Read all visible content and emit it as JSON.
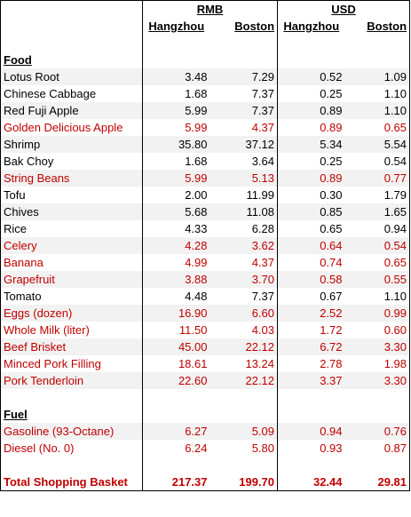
{
  "header": {
    "currency_rmb": "RMB",
    "currency_usd": "USD",
    "cities": [
      "Hangzhou",
      "Boston",
      "Hangzhou",
      "Boston"
    ]
  },
  "sections": {
    "food": "Food",
    "fuel": "Fuel"
  },
  "food_items": [
    {
      "name": "Lotus Root",
      "rmb_hz": "3.48",
      "rmb_bos": "7.29",
      "usd_hz": "0.52",
      "usd_bos": "1.09",
      "highlight": false
    },
    {
      "name": "Chinese Cabbage",
      "rmb_hz": "1.68",
      "rmb_bos": "7.37",
      "usd_hz": "0.25",
      "usd_bos": "1.10",
      "highlight": false
    },
    {
      "name": "Red Fuji Apple",
      "rmb_hz": "5.99",
      "rmb_bos": "7.37",
      "usd_hz": "0.89",
      "usd_bos": "1.10",
      "highlight": false
    },
    {
      "name": "Golden Delicious Apple",
      "rmb_hz": "5.99",
      "rmb_bos": "4.37",
      "usd_hz": "0.89",
      "usd_bos": "0.65",
      "highlight": true
    },
    {
      "name": "Shrimp",
      "rmb_hz": "35.80",
      "rmb_bos": "37.12",
      "usd_hz": "5.34",
      "usd_bos": "5.54",
      "highlight": false
    },
    {
      "name": "Bak Choy",
      "rmb_hz": "1.68",
      "rmb_bos": "3.64",
      "usd_hz": "0.25",
      "usd_bos": "0.54",
      "highlight": false
    },
    {
      "name": "String Beans",
      "rmb_hz": "5.99",
      "rmb_bos": "5.13",
      "usd_hz": "0.89",
      "usd_bos": "0.77",
      "highlight": true
    },
    {
      "name": "Tofu",
      "rmb_hz": "2.00",
      "rmb_bos": "11.99",
      "usd_hz": "0.30",
      "usd_bos": "1.79",
      "highlight": false
    },
    {
      "name": "Chives",
      "rmb_hz": "5.68",
      "rmb_bos": "11.08",
      "usd_hz": "0.85",
      "usd_bos": "1.65",
      "highlight": false
    },
    {
      "name": "Rice",
      "rmb_hz": "4.33",
      "rmb_bos": "6.28",
      "usd_hz": "0.65",
      "usd_bos": "0.94",
      "highlight": false
    },
    {
      "name": "Celery",
      "rmb_hz": "4.28",
      "rmb_bos": "3.62",
      "usd_hz": "0.64",
      "usd_bos": "0.54",
      "highlight": true
    },
    {
      "name": "Banana",
      "rmb_hz": "4.99",
      "rmb_bos": "4.37",
      "usd_hz": "0.74",
      "usd_bos": "0.65",
      "highlight": true
    },
    {
      "name": "Grapefruit",
      "rmb_hz": "3.88",
      "rmb_bos": "3.70",
      "usd_hz": "0.58",
      "usd_bos": "0.55",
      "highlight": true
    },
    {
      "name": "Tomato",
      "rmb_hz": "4.48",
      "rmb_bos": "7.37",
      "usd_hz": "0.67",
      "usd_bos": "1.10",
      "highlight": false
    },
    {
      "name": "Eggs (dozen)",
      "rmb_hz": "16.90",
      "rmb_bos": "6.60",
      "usd_hz": "2.52",
      "usd_bos": "0.99",
      "highlight": true
    },
    {
      "name": "Whole Milk (liter)",
      "rmb_hz": "11.50",
      "rmb_bos": "4.03",
      "usd_hz": "1.72",
      "usd_bos": "0.60",
      "highlight": true
    },
    {
      "name": "Beef Brisket",
      "rmb_hz": "45.00",
      "rmb_bos": "22.12",
      "usd_hz": "6.72",
      "usd_bos": "3.30",
      "highlight": true
    },
    {
      "name": "Minced Pork Filling",
      "rmb_hz": "18.61",
      "rmb_bos": "13.24",
      "usd_hz": "2.78",
      "usd_bos": "1.98",
      "highlight": true
    },
    {
      "name": "Pork Tenderloin",
      "rmb_hz": "22.60",
      "rmb_bos": "22.12",
      "usd_hz": "3.37",
      "usd_bos": "3.30",
      "highlight": true
    }
  ],
  "fuel_items": [
    {
      "name": "Gasoline (93-Octane)",
      "rmb_hz": "6.27",
      "rmb_bos": "5.09",
      "usd_hz": "0.94",
      "usd_bos": "0.76",
      "highlight": true
    },
    {
      "name": "Diesel (No. 0)",
      "rmb_hz": "6.24",
      "rmb_bos": "5.80",
      "usd_hz": "0.93",
      "usd_bos": "0.87",
      "highlight": true
    }
  ],
  "total": {
    "label": "Total Shopping Basket",
    "rmb_hz": "217.37",
    "rmb_bos": "199.70",
    "usd_hz": "32.44",
    "usd_bos": "29.81"
  },
  "colors": {
    "highlight_red": "#c00000",
    "row_shade": "#f2f2f2",
    "border": "#000000"
  }
}
